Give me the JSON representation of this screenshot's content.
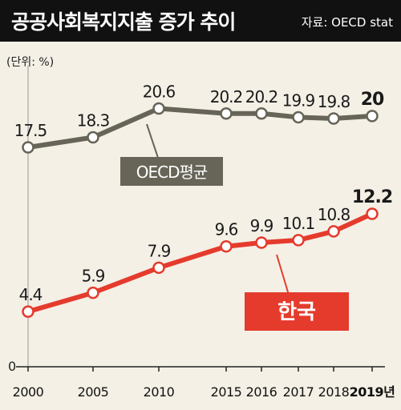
{
  "header": {
    "title": "공공사회복지지출 증가 추이",
    "source": "자료: OECD stat"
  },
  "unit_label": "(단위: %)",
  "colors": {
    "oecd": "#666557",
    "korea": "#e53b2d",
    "header_bg": "#111111",
    "background": "#f4f0e6"
  },
  "chart_data": {
    "type": "line",
    "categories": [
      "2000",
      "2005",
      "2010",
      "2015",
      "2016",
      "2017",
      "2018",
      "2019년"
    ],
    "series": [
      {
        "name": "OECD평균",
        "values": [
          17.5,
          18.3,
          20.6,
          20.2,
          20.2,
          19.9,
          19.8,
          20
        ]
      },
      {
        "name": "한국",
        "values": [
          4.4,
          5.9,
          7.9,
          9.6,
          9.9,
          10.1,
          10.8,
          12.2
        ]
      }
    ],
    "y_zero_label": "0",
    "ylim": [
      0,
      22
    ],
    "grid": false
  }
}
